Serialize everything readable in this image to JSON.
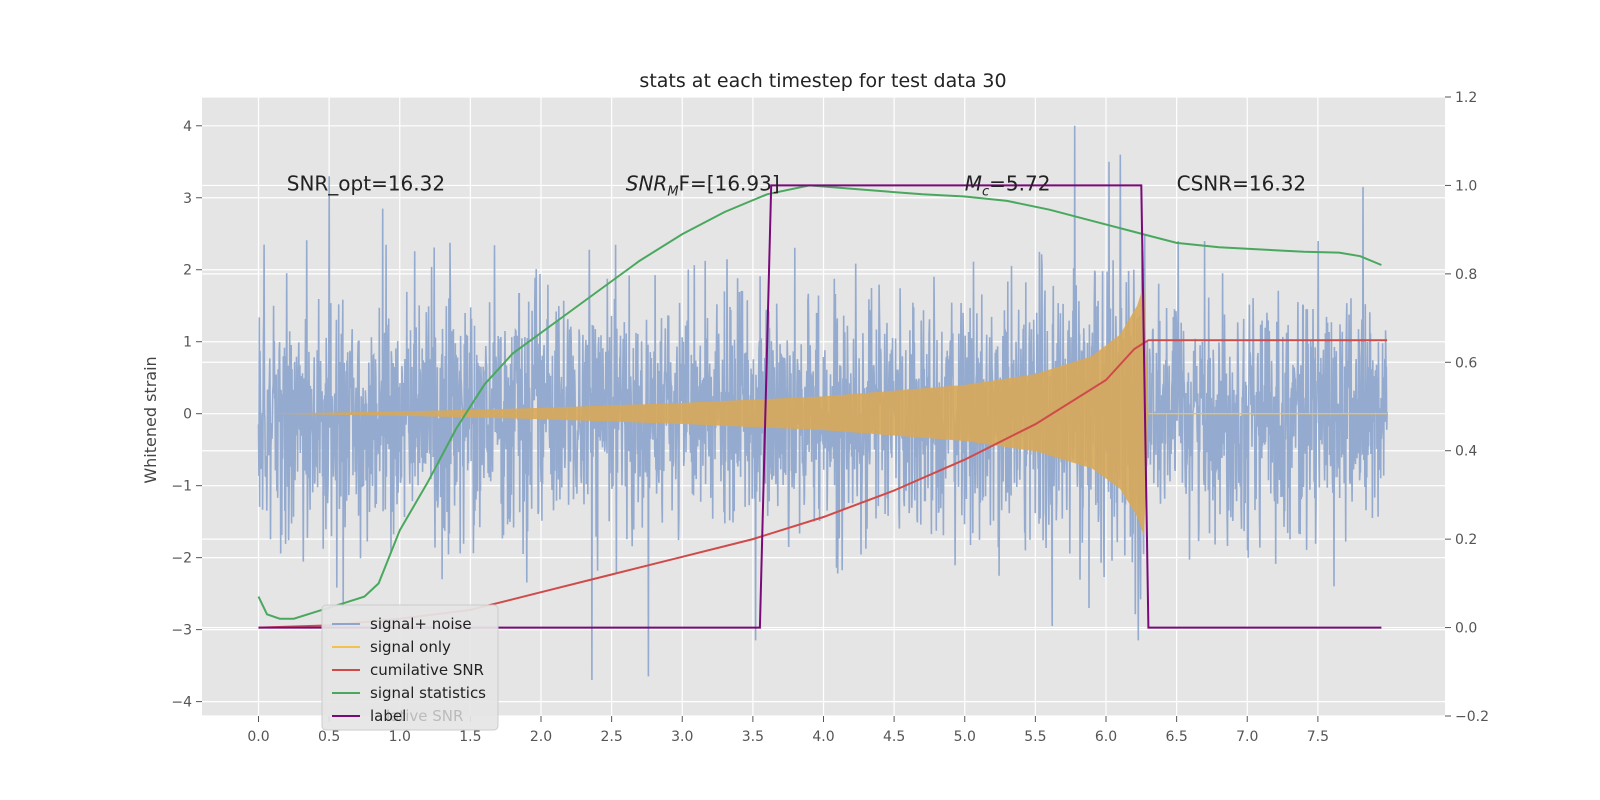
{
  "chart_data": {
    "type": "line",
    "title": "stats at each timestep for test data 30",
    "ylabel": "Whitened strain",
    "ylabel_right": "",
    "xlabel": "",
    "xlim": [
      -0.4,
      8.4
    ],
    "ylim": [
      -4.2,
      4.4
    ],
    "ylim_right": [
      -0.2,
      1.2
    ],
    "x_ticks": [
      "0.0",
      "0.5",
      "1.0",
      "1.5",
      "2.0",
      "2.5",
      "3.0",
      "3.5",
      "4.0",
      "4.5",
      "5.0",
      "5.5",
      "6.0",
      "6.5",
      "7.0",
      "7.5"
    ],
    "y_ticks": [
      "4",
      "3",
      "2",
      "1",
      "0",
      "−1",
      "−2",
      "−3",
      "−4"
    ],
    "y_ticks_right": [
      "1.2",
      "1.0",
      "0.8",
      "0.6",
      "0.4",
      "0.2",
      "0.0",
      "−0.2"
    ],
    "grid": true,
    "background": "#e5e5e5",
    "annotations": [
      {
        "text": "SNR_opt=16.32",
        "x": 0.2,
        "y": 3.2
      },
      {
        "text": "SNR",
        "sub": "M",
        "rest": "F=[16.93]",
        "x": 2.6,
        "y": 3.2
      },
      {
        "text": "M",
        "sub": "c",
        "rest": "=5.72",
        "x": 5.0,
        "y": 3.2
      },
      {
        "text": "CSNR=16.32",
        "x": 6.5,
        "y": 3.2
      }
    ],
    "legend": {
      "placement": "lower-left",
      "entries": [
        {
          "label": "signal+ noise",
          "color": "#8fa6cc"
        },
        {
          "label": "signal only",
          "color": "#f2c14e"
        },
        {
          "label": "cumilative SNR",
          "color": "#d04a4a"
        },
        {
          "label": "signal statistics",
          "color": "#4aa85e"
        },
        {
          "label": "label",
          "color": "#7a0a7a"
        }
      ],
      "ghost_text": "lative SNR"
    },
    "series": [
      {
        "name": "signal+ noise",
        "axis": "left",
        "kind": "noise",
        "x_range": [
          0.0,
          7.99
        ],
        "typical_amplitude": 1.6,
        "spikes": [
          [
            0.04,
            2.35
          ],
          [
            0.2,
            1.95
          ],
          [
            0.5,
            3.3
          ],
          [
            0.6,
            -2.7
          ],
          [
            0.88,
            2.85
          ],
          [
            1.3,
            -2.3
          ],
          [
            2.36,
            -3.7
          ],
          [
            2.76,
            -3.65
          ],
          [
            3.52,
            -3.15
          ],
          [
            5.62,
            -2.95
          ],
          [
            5.78,
            4.0
          ],
          [
            5.88,
            -2.7
          ],
          [
            6.02,
            3.5
          ],
          [
            6.1,
            3.6
          ],
          [
            6.23,
            -3.15
          ],
          [
            7.82,
            3.15
          ]
        ],
        "color": "#8fa6cc"
      },
      {
        "name": "signal only",
        "axis": "left",
        "kind": "chirp_envelope",
        "envelope": [
          [
            0.0,
            0.0
          ],
          [
            1.0,
            0.03
          ],
          [
            2.0,
            0.08
          ],
          [
            3.0,
            0.15
          ],
          [
            4.0,
            0.24
          ],
          [
            5.0,
            0.4
          ],
          [
            5.5,
            0.55
          ],
          [
            5.9,
            0.8
          ],
          [
            6.1,
            1.1
          ],
          [
            6.22,
            1.5
          ],
          [
            6.27,
            1.8
          ],
          [
            6.3,
            0.0
          ],
          [
            7.99,
            0.0
          ]
        ],
        "color": "#f2c14e"
      },
      {
        "name": "cumilative SNR",
        "axis": "right",
        "x": [
          0.0,
          0.5,
          1.0,
          1.5,
          2.0,
          2.5,
          3.0,
          3.5,
          4.0,
          4.5,
          5.0,
          5.5,
          6.0,
          6.2,
          6.3,
          7.0,
          7.99
        ],
        "y": [
          0.0,
          0.005,
          0.02,
          0.04,
          0.08,
          0.12,
          0.16,
          0.2,
          0.25,
          0.31,
          0.38,
          0.46,
          0.56,
          0.63,
          0.65,
          0.65,
          0.65
        ],
        "color": "#d04a4a"
      },
      {
        "name": "signal statistics",
        "axis": "right",
        "x": [
          0.0,
          0.06,
          0.15,
          0.25,
          0.4,
          0.6,
          0.75,
          0.85,
          1.0,
          1.2,
          1.4,
          1.6,
          1.8,
          2.1,
          2.4,
          2.7,
          3.0,
          3.3,
          3.6,
          3.9,
          4.3,
          4.7,
          5.0,
          5.3,
          5.6,
          5.9,
          6.2,
          6.5,
          6.8,
          7.1,
          7.4,
          7.65,
          7.8,
          7.95
        ],
        "y": [
          0.07,
          0.03,
          0.02,
          0.02,
          0.035,
          0.055,
          0.07,
          0.1,
          0.22,
          0.33,
          0.45,
          0.55,
          0.62,
          0.69,
          0.76,
          0.83,
          0.89,
          0.94,
          0.98,
          1.0,
          0.99,
          0.98,
          0.975,
          0.965,
          0.945,
          0.92,
          0.895,
          0.87,
          0.86,
          0.855,
          0.85,
          0.848,
          0.84,
          0.82
        ],
        "color": "#4aa85e"
      },
      {
        "name": "label",
        "axis": "right",
        "x": [
          0.0,
          3.55,
          3.63,
          6.25,
          6.3,
          7.95
        ],
        "y": [
          0.0,
          0.0,
          1.0,
          1.0,
          0.0,
          0.0
        ],
        "color": "#7a0a7a"
      }
    ]
  }
}
